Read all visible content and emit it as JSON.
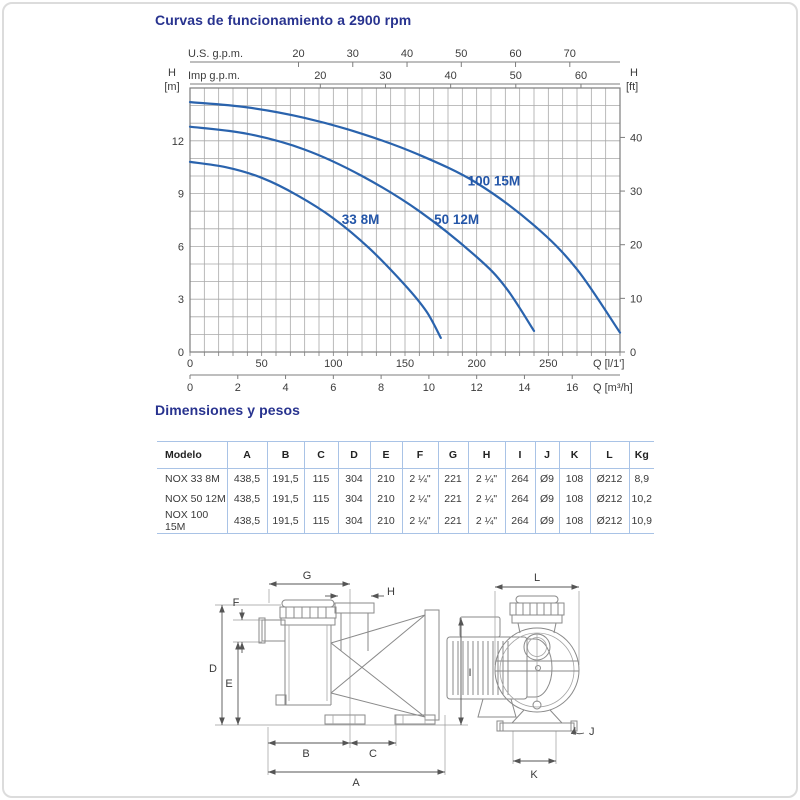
{
  "page": {
    "chart_title": "Curvas de funcionamiento a 2900 rpm",
    "table_title": "Dimensiones y pesos"
  },
  "chart_data": {
    "type": "line",
    "title": "Curvas de funcionamiento a 2900 rpm",
    "x_primary": {
      "label": "Q [l/1']",
      "min": 0,
      "max": 300,
      "ticks": [
        0,
        50,
        100,
        150,
        200,
        250
      ],
      "minor_step": 10
    },
    "x_secondary": {
      "label": "Q [m³/h]",
      "ticks": [
        0,
        2,
        4,
        6,
        8,
        10,
        12,
        14,
        16
      ],
      "lmin_per_unit": 16.6667
    },
    "x_top_us": {
      "label": "U.S. g.p.m.",
      "ticks": [
        20,
        30,
        40,
        50,
        60,
        70
      ],
      "lmin_per_unit": 3.7854
    },
    "x_top_imp": {
      "label": "Imp g.p.m.",
      "ticks": [
        20,
        30,
        40,
        50,
        60
      ],
      "lmin_per_unit": 4.5461
    },
    "y_left": {
      "label_line1": "H",
      "label_line2": "[m]",
      "min": 0,
      "max": 15,
      "ticks": [
        0,
        3,
        6,
        9,
        12
      ],
      "minor_step": 1
    },
    "y_right": {
      "label_line1": "H",
      "label_line2": "[ft]",
      "ticks": [
        0,
        10,
        20,
        30,
        40
      ],
      "m_per_unit": 0.3048
    },
    "grid": true,
    "legend_position": "on-curve",
    "series": [
      {
        "name": "33 8M",
        "label_q": 119,
        "label_h": 7.55,
        "points": [
          [
            0,
            10.8
          ],
          [
            25,
            10.5
          ],
          [
            50,
            9.9
          ],
          [
            75,
            8.9
          ],
          [
            100,
            7.6
          ],
          [
            125,
            5.9
          ],
          [
            150,
            3.8
          ],
          [
            165,
            2.3
          ],
          [
            175,
            0.8
          ]
        ]
      },
      {
        "name": "50 12M",
        "label_q": 186,
        "label_h": 7.55,
        "points": [
          [
            0,
            12.8
          ],
          [
            40,
            12.4
          ],
          [
            80,
            11.5
          ],
          [
            120,
            10.0
          ],
          [
            160,
            8.0
          ],
          [
            200,
            5.4
          ],
          [
            220,
            3.7
          ],
          [
            240,
            1.2
          ]
        ]
      },
      {
        "name": "100 15M",
        "label_q": 212,
        "label_h": 9.75,
        "points": [
          [
            0,
            14.2
          ],
          [
            40,
            13.9
          ],
          [
            80,
            13.3
          ],
          [
            120,
            12.4
          ],
          [
            160,
            11.2
          ],
          [
            200,
            9.6
          ],
          [
            240,
            7.2
          ],
          [
            270,
            4.7
          ],
          [
            300,
            1.1
          ]
        ]
      }
    ],
    "colors": {
      "curve": "#2a63ad",
      "grid": "#a9a9a9",
      "frame": "#7d7d7d",
      "text": "#3c3c3c",
      "curve_label": "#2456a8",
      "title": "#28338f"
    }
  },
  "table": {
    "title": "Dimensiones y pesos",
    "headers": [
      "Modelo",
      "A",
      "B",
      "C",
      "D",
      "E",
      "F",
      "G",
      "H",
      "I",
      "J",
      "K",
      "L",
      "Kg"
    ],
    "rows": [
      [
        "NOX 33 8M",
        "438,5",
        "191,5",
        "115",
        "304",
        "210",
        "2 ¼\"",
        "221",
        "2 ¼\"",
        "264",
        "Ø9",
        "108",
        "Ø212",
        "8,9"
      ],
      [
        "NOX 50 12M",
        "438,5",
        "191,5",
        "115",
        "304",
        "210",
        "2 ¼\"",
        "221",
        "2 ¼\"",
        "264",
        "Ø9",
        "108",
        "Ø212",
        "10,2"
      ],
      [
        "NOX 100 15M",
        "438,5",
        "191,5",
        "115",
        "304",
        "210",
        "2 ¼\"",
        "221",
        "2 ¼\"",
        "264",
        "Ø9",
        "108",
        "Ø212",
        "10,9"
      ]
    ]
  },
  "drawings": {
    "labels": {
      "A": "A",
      "B": "B",
      "C": "C",
      "D": "D",
      "E": "E",
      "F": "F",
      "G": "G",
      "H": "H",
      "I": "I",
      "J": "J",
      "K": "K",
      "L": "L"
    }
  }
}
